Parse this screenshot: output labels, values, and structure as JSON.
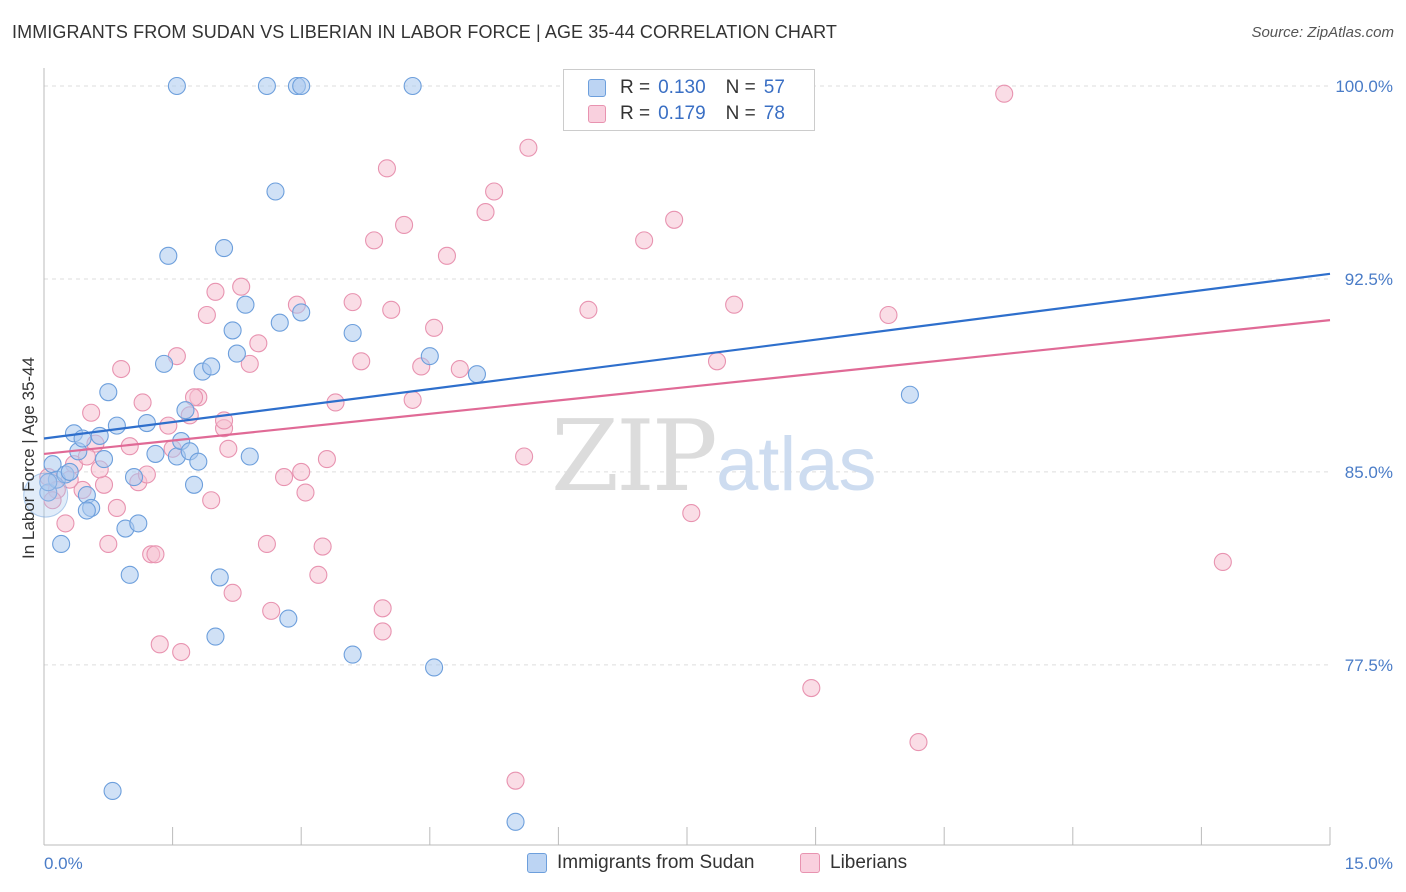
{
  "header": {
    "title": "IMMIGRANTS FROM SUDAN VS LIBERIAN IN LABOR FORCE | AGE 35-44 CORRELATION CHART",
    "source": "Source: ZipAtlas.com"
  },
  "watermark": {
    "zip": "ZIP",
    "atlas": "atlas"
  },
  "legend": {
    "series1": {
      "r_label": "R = ",
      "r_value": "0.130",
      "n_label": "N = ",
      "n_value": "57"
    },
    "series2": {
      "r_label": "R = ",
      "r_value": "0.179",
      "n_label": "N = ",
      "n_value": "78"
    }
  },
  "bottom_legend": {
    "series1": "Immigrants from Sudan",
    "series2": "Liberians"
  },
  "colors": {
    "blue_fill": "#aac8ee",
    "blue_stroke": "#6d9fdc",
    "blue_line": "#2e6fcc",
    "pink_fill": "#f6c1d2",
    "pink_stroke": "#e893b0",
    "pink_line": "#e06a96",
    "axis_text": "#4a7cc7",
    "grid": "#dddddd"
  },
  "chart_data": {
    "type": "scatter",
    "title": "IMMIGRANTS FROM SUDAN VS LIBERIAN IN LABOR FORCE | AGE 35-44 CORRELATION CHART",
    "xlabel": "",
    "ylabel": "In Labor Force | Age 35-44",
    "xlim": [
      0,
      15
    ],
    "ylim": [
      70.5,
      100.7
    ],
    "x_tick_labels": [
      {
        "value": 0,
        "label": "0.0%"
      },
      {
        "value": 15,
        "label": "15.0%"
      }
    ],
    "y_tick_labels": [
      {
        "value": 100,
        "label": "100.0%"
      },
      {
        "value": 92.5,
        "label": "92.5%"
      },
      {
        "value": 85,
        "label": "85.0%"
      },
      {
        "value": 77.5,
        "label": "77.5%"
      }
    ],
    "series": [
      {
        "name": "Immigrants from Sudan",
        "color": "#aac8ee",
        "R": 0.13,
        "N": 57,
        "trend": {
          "x": [
            0,
            15
          ],
          "y": [
            86.3,
            92.7
          ]
        },
        "points": [
          [
            0.05,
            84.2
          ],
          [
            0.1,
            85.3
          ],
          [
            0.15,
            84.7
          ],
          [
            0.2,
            82.2
          ],
          [
            0.25,
            84.9
          ],
          [
            0.35,
            86.5
          ],
          [
            0.4,
            85.8
          ],
          [
            0.45,
            86.3
          ],
          [
            0.5,
            84.1
          ],
          [
            0.55,
            83.6
          ],
          [
            0.65,
            86.4
          ],
          [
            0.7,
            85.5
          ],
          [
            0.75,
            88.1
          ],
          [
            0.85,
            86.8
          ],
          [
            0.95,
            82.8
          ],
          [
            1.0,
            81.0
          ],
          [
            1.05,
            84.8
          ],
          [
            1.1,
            83.0
          ],
          [
            1.2,
            86.9
          ],
          [
            1.3,
            85.7
          ],
          [
            1.4,
            89.2
          ],
          [
            1.45,
            93.4
          ],
          [
            1.55,
            85.6
          ],
          [
            1.6,
            86.2
          ],
          [
            1.7,
            85.8
          ],
          [
            1.75,
            84.5
          ],
          [
            1.8,
            85.4
          ],
          [
            1.85,
            88.9
          ],
          [
            1.95,
            89.1
          ],
          [
            2.0,
            78.6
          ],
          [
            2.05,
            80.9
          ],
          [
            2.1,
            93.7
          ],
          [
            2.2,
            90.5
          ],
          [
            2.25,
            89.6
          ],
          [
            2.4,
            85.6
          ],
          [
            2.7,
            95.9
          ],
          [
            2.75,
            90.8
          ],
          [
            2.85,
            79.3
          ],
          [
            3.0,
            91.2
          ],
          [
            3.6,
            90.4
          ],
          [
            3.6,
            77.9
          ],
          [
            4.5,
            89.5
          ],
          [
            4.55,
            77.4
          ],
          [
            5.05,
            88.8
          ],
          [
            5.5,
            71.4
          ],
          [
            0.05,
            84.6
          ],
          [
            0.3,
            85.0
          ],
          [
            0.5,
            83.5
          ],
          [
            1.65,
            87.4
          ],
          [
            1.55,
            100.0
          ],
          [
            2.6,
            100.0
          ],
          [
            2.95,
            100.0
          ],
          [
            3.0,
            100.0
          ],
          [
            4.3,
            100.0
          ],
          [
            0.8,
            72.6
          ],
          [
            10.1,
            88.0
          ],
          [
            2.35,
            91.5
          ]
        ]
      },
      {
        "name": "Liberians",
        "color": "#f6c1d2",
        "R": 0.179,
        "N": 78,
        "trend": {
          "x": [
            0,
            15
          ],
          "y": [
            85.7,
            90.9
          ]
        },
        "points": [
          [
            0.05,
            84.8
          ],
          [
            0.15,
            84.3
          ],
          [
            0.25,
            83.0
          ],
          [
            0.35,
            85.3
          ],
          [
            0.45,
            84.3
          ],
          [
            0.55,
            87.3
          ],
          [
            0.6,
            86.1
          ],
          [
            0.7,
            84.5
          ],
          [
            0.75,
            82.2
          ],
          [
            0.85,
            83.6
          ],
          [
            0.9,
            89.0
          ],
          [
            1.0,
            86.0
          ],
          [
            1.1,
            84.6
          ],
          [
            1.15,
            87.7
          ],
          [
            1.25,
            81.8
          ],
          [
            1.35,
            78.3
          ],
          [
            1.45,
            86.8
          ],
          [
            1.5,
            85.9
          ],
          [
            1.55,
            89.5
          ],
          [
            1.6,
            78.0
          ],
          [
            1.7,
            87.2
          ],
          [
            1.8,
            87.9
          ],
          [
            1.9,
            91.1
          ],
          [
            2.0,
            92.0
          ],
          [
            2.1,
            86.7
          ],
          [
            2.2,
            80.3
          ],
          [
            2.3,
            92.2
          ],
          [
            2.4,
            89.2
          ],
          [
            2.5,
            90.0
          ],
          [
            2.6,
            82.2
          ],
          [
            2.65,
            79.6
          ],
          [
            2.8,
            84.8
          ],
          [
            2.95,
            91.5
          ],
          [
            3.0,
            85.0
          ],
          [
            3.05,
            84.2
          ],
          [
            3.2,
            81.0
          ],
          [
            3.25,
            82.1
          ],
          [
            3.4,
            87.7
          ],
          [
            3.6,
            91.6
          ],
          [
            3.7,
            89.3
          ],
          [
            3.85,
            94.0
          ],
          [
            3.95,
            79.7
          ],
          [
            4.0,
            96.8
          ],
          [
            4.05,
            91.3
          ],
          [
            4.2,
            94.6
          ],
          [
            4.3,
            87.8
          ],
          [
            4.4,
            89.1
          ],
          [
            4.55,
            90.6
          ],
          [
            4.7,
            93.4
          ],
          [
            5.15,
            95.1
          ],
          [
            5.25,
            95.9
          ],
          [
            5.5,
            73.0
          ],
          [
            5.6,
            85.6
          ],
          [
            5.65,
            97.6
          ],
          [
            6.35,
            91.3
          ],
          [
            7.0,
            94.0
          ],
          [
            7.35,
            94.8
          ],
          [
            7.55,
            83.4
          ],
          [
            7.85,
            89.3
          ],
          [
            8.05,
            91.5
          ],
          [
            8.95,
            76.6
          ],
          [
            9.85,
            91.1
          ],
          [
            10.2,
            74.5
          ],
          [
            11.2,
            99.7
          ],
          [
            13.75,
            81.5
          ],
          [
            0.1,
            83.9
          ],
          [
            0.3,
            84.7
          ],
          [
            0.65,
            85.1
          ],
          [
            1.2,
            84.9
          ],
          [
            1.95,
            83.9
          ],
          [
            2.1,
            87.0
          ],
          [
            3.3,
            85.5
          ],
          [
            0.5,
            85.6
          ],
          [
            1.3,
            81.8
          ],
          [
            1.75,
            87.9
          ],
          [
            2.15,
            85.9
          ],
          [
            3.95,
            78.8
          ],
          [
            4.85,
            89.0
          ]
        ]
      }
    ]
  }
}
